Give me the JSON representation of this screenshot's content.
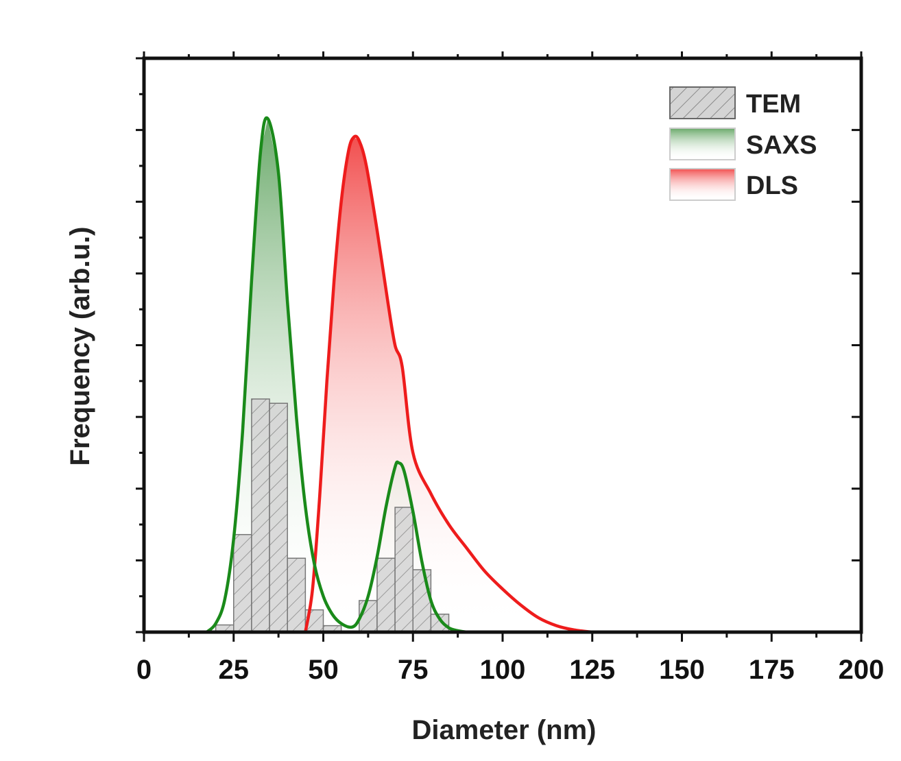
{
  "chart_data": {
    "type": "bar+area",
    "title": "",
    "xlabel": "Diameter (nm)",
    "ylabel": "Frequency (arb.u.)",
    "xlim": [
      0,
      200
    ],
    "ylim": [
      0,
      8
    ],
    "xticks": [
      "0",
      "25",
      "50",
      "75",
      "100",
      "125",
      "150",
      "175",
      "200"
    ],
    "xtick_values": [
      0,
      25,
      50,
      75,
      100,
      125,
      150,
      175,
      200
    ],
    "grid": false,
    "legend_position": "top-right",
    "legend": [
      "TEM",
      "SAXS",
      "DLS"
    ],
    "colors": {
      "TEM": "#c8c8c8",
      "SAXS": "#1a8a1a",
      "DLS": "#ee1c1c"
    },
    "tem_histogram": {
      "bin_width": 5,
      "bin_starts": [
        20,
        25,
        30,
        35,
        40,
        45,
        50,
        60,
        65,
        70,
        75,
        80
      ],
      "values": [
        0.1,
        1.36,
        3.25,
        3.19,
        1.03,
        0.31,
        0.09,
        0.44,
        1.03,
        1.74,
        0.87,
        0.25
      ]
    },
    "saxs": {
      "x": [
        17.5,
        20,
        22.5,
        25,
        27.5,
        30,
        32.5,
        34.5,
        37.5,
        40,
        42.5,
        45,
        47.5,
        50,
        52.5,
        55,
        58,
        60,
        62.5,
        65,
        67.5,
        70,
        71,
        72.5,
        75,
        77.5,
        80,
        82.5,
        85,
        87.5,
        90
      ],
      "y": [
        0,
        0.12,
        0.45,
        1.3,
        2.8,
        4.9,
        6.7,
        7.16,
        6.4,
        4.6,
        3.0,
        1.75,
        0.95,
        0.5,
        0.25,
        0.12,
        0.07,
        0.18,
        0.5,
        1.05,
        1.75,
        2.3,
        2.36,
        2.25,
        1.68,
        0.98,
        0.44,
        0.18,
        0.06,
        0.02,
        0
      ]
    },
    "dls": {
      "x": [
        45,
        47,
        49,
        51,
        53,
        55,
        57,
        58.5,
        60,
        62,
        65,
        68,
        70,
        72,
        75,
        80,
        85,
        90,
        95,
        100,
        105,
        110,
        115,
        120,
        125
      ],
      "y": [
        0,
        0.6,
        1.9,
        3.5,
        4.9,
        6.0,
        6.7,
        6.9,
        6.85,
        6.5,
        5.6,
        4.6,
        4.0,
        3.7,
        2.5,
        1.93,
        1.5,
        1.17,
        0.85,
        0.6,
        0.38,
        0.2,
        0.09,
        0.03,
        0
      ]
    }
  }
}
